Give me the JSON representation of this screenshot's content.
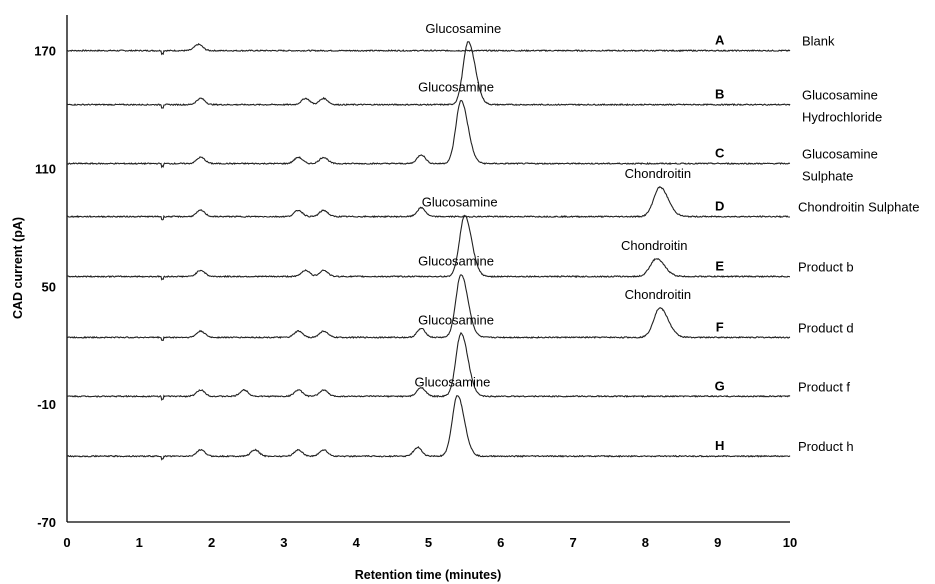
{
  "chart_data": {
    "type": "line",
    "xlabel": "Retention time (minutes)",
    "ylabel": "CAD current (pA)",
    "xlim": [
      0,
      10
    ],
    "ylim": [
      -70,
      180
    ],
    "xticks": [
      "0",
      "1",
      "2",
      "3",
      "4",
      "5",
      "6",
      "7",
      "8",
      "9",
      "10"
    ],
    "yticks": [
      "170",
      "110",
      "50",
      "-10",
      "-70"
    ],
    "grid": false,
    "series": [
      {
        "letter": "A",
        "name": "Blank",
        "baseline": 170,
        "bumps": [
          1.82
        ],
        "peaks": []
      },
      {
        "letter": "B",
        "name": "Glucosamine Hydrochloride",
        "baseline": 142.5,
        "bumps": [
          1.85,
          3.3,
          3.55
        ],
        "peaks": [
          {
            "label": "Glucosamine",
            "x": 5.55,
            "height": 32
          }
        ]
      },
      {
        "letter": "C",
        "name": "Glucosamine Sulphate",
        "baseline": 112.5,
        "bumps": [
          1.85,
          3.2,
          3.55,
          4.9
        ],
        "peaks": [
          {
            "label": "Glucosamine",
            "x": 5.45,
            "height": 32
          }
        ]
      },
      {
        "letter": "D",
        "name": "Chondroitin Sulphate",
        "baseline": 85.5,
        "bumps": [
          1.85,
          3.2,
          3.55,
          4.9
        ],
        "peaks": [
          {
            "label": "Chondroitin",
            "x": 8.2,
            "height": 15
          }
        ]
      },
      {
        "letter": "E",
        "name": "Product b",
        "baseline": 55,
        "bumps": [
          1.85,
          3.3,
          3.55
        ],
        "peaks": [
          {
            "label": "Glucosamine",
            "x": 5.5,
            "height": 31
          },
          {
            "label": "Chondroitin",
            "x": 8.15,
            "height": 9
          }
        ]
      },
      {
        "letter": "F",
        "name": "Product d",
        "baseline": 24,
        "bumps": [
          1.85,
          3.2,
          3.55,
          4.9
        ],
        "peaks": [
          {
            "label": "Glucosamine",
            "x": 5.45,
            "height": 32
          },
          {
            "label": "Chondroitin",
            "x": 8.2,
            "height": 15
          }
        ]
      },
      {
        "letter": "G",
        "name": "Product f",
        "baseline": -6,
        "bumps": [
          1.85,
          2.45,
          3.2,
          3.55,
          4.9
        ],
        "peaks": [
          {
            "label": "Glucosamine",
            "x": 5.45,
            "height": 32
          }
        ]
      },
      {
        "letter": "H",
        "name": "Product h",
        "baseline": -36.5,
        "bumps": [
          1.85,
          2.6,
          3.2,
          3.55,
          4.85
        ],
        "peaks": [
          {
            "label": "Glucosamine",
            "x": 5.4,
            "height": 31
          }
        ]
      }
    ]
  }
}
